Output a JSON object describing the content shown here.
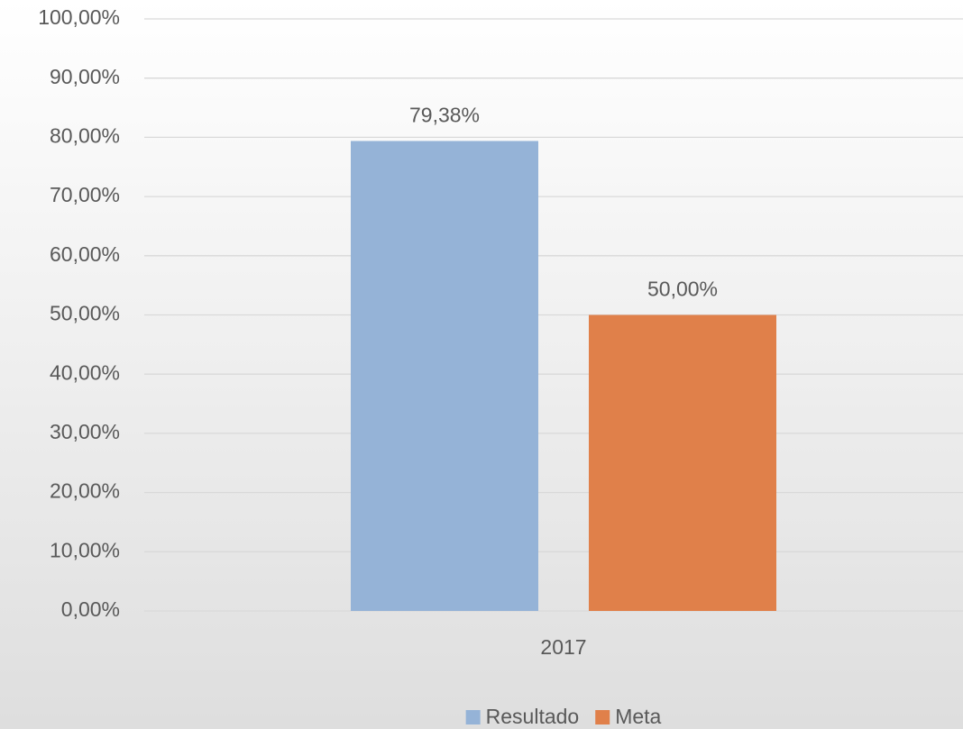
{
  "chart_data": {
    "type": "bar",
    "categories": [
      "2017"
    ],
    "series": [
      {
        "name": "Resultado",
        "color": "#95b3d7",
        "values": [
          79.38
        ],
        "value_labels": [
          "79,38%"
        ]
      },
      {
        "name": "Meta",
        "color": "#e0804a",
        "values": [
          50
        ],
        "value_labels": [
          "50,00%"
        ]
      }
    ],
    "ylim": [
      0,
      100
    ],
    "yticks": [
      {
        "value": 0,
        "label": "0,00%"
      },
      {
        "value": 10,
        "label": "10,00%"
      },
      {
        "value": 20,
        "label": "20,00%"
      },
      {
        "value": 30,
        "label": "30,00%"
      },
      {
        "value": 40,
        "label": "40,00%"
      },
      {
        "value": 50,
        "label": "50,00%"
      },
      {
        "value": 60,
        "label": "60,00%"
      },
      {
        "value": 70,
        "label": "70,00%"
      },
      {
        "value": 80,
        "label": "80,00%"
      },
      {
        "value": 90,
        "label": "90,00%"
      },
      {
        "value": 100,
        "label": "100,00%"
      }
    ],
    "grid": true,
    "legend": "bottom"
  }
}
